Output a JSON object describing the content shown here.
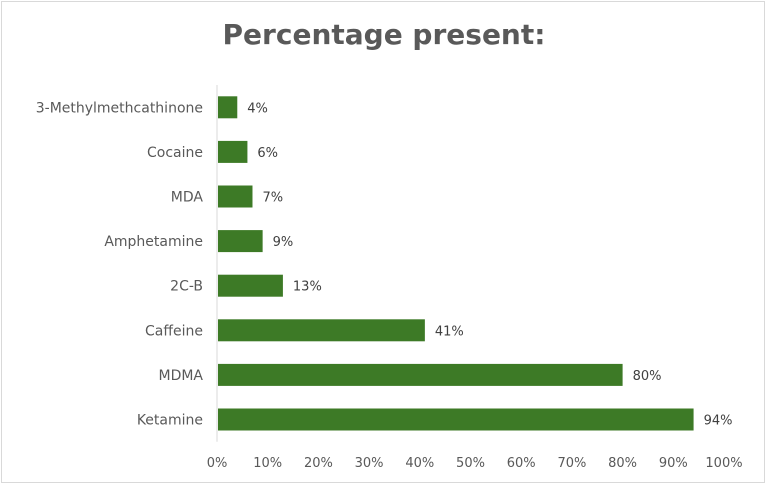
{
  "chart_data": {
    "type": "bar",
    "orientation": "horizontal",
    "title": "Percentage present:",
    "categories": [
      "3-Methylmethcathinone",
      "Cocaine",
      "MDA",
      "Amphetamine",
      "2C-B",
      "Caffeine",
      "MDMA",
      "Ketamine"
    ],
    "values": [
      4,
      6,
      7,
      9,
      13,
      41,
      80,
      94
    ],
    "data_labels": [
      "4%",
      "6%",
      "7%",
      "9%",
      "13%",
      "41%",
      "80%",
      "94%"
    ],
    "xlim": [
      0,
      100
    ],
    "xticks": [
      "0%",
      "10%",
      "20%",
      "30%",
      "40%",
      "50%",
      "60%",
      "70%",
      "80%",
      "90%",
      "100%"
    ],
    "xlabel": "",
    "ylabel": "",
    "grid": false,
    "legend": "none",
    "bar_color": "#3d7a26"
  }
}
